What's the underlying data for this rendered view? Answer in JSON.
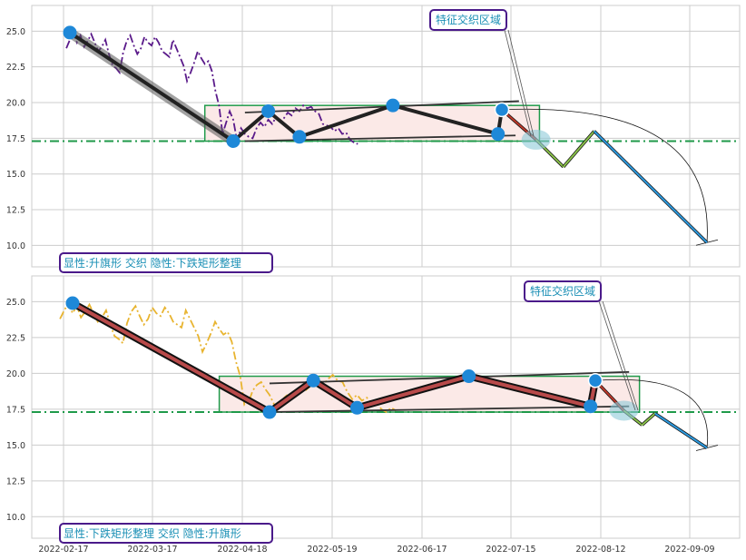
{
  "chart_data": [
    {
      "type": "line",
      "panel": "top",
      "yticks": [
        "10.0",
        "12.5",
        "15.0",
        "17.5",
        "20.0",
        "22.5",
        "25.0"
      ],
      "ylim": [
        8.5,
        26.8
      ],
      "grid": true,
      "hline": 17.3,
      "price": [
        [
          2,
          23.8
        ],
        [
          3,
          24.4
        ],
        [
          4,
          24.9
        ],
        [
          5,
          24.2
        ],
        [
          6,
          24.7
        ],
        [
          7,
          23.9
        ],
        [
          8,
          24.3
        ],
        [
          9,
          24.8
        ],
        [
          10,
          24.2
        ],
        [
          11,
          23.6
        ],
        [
          12,
          23.9
        ],
        [
          13,
          24.4
        ],
        [
          14,
          23.4
        ],
        [
          15,
          22.6
        ],
        [
          16,
          22.4
        ],
        [
          17,
          22.1
        ],
        [
          18,
          23.5
        ],
        [
          19,
          24.3
        ],
        [
          20,
          24.7
        ],
        [
          21,
          24.0
        ],
        [
          22,
          23.4
        ],
        [
          23,
          23.8
        ],
        [
          24,
          24.6
        ],
        [
          25,
          24.2
        ],
        [
          26,
          24.0
        ],
        [
          27,
          24.6
        ],
        [
          28,
          24.2
        ],
        [
          29,
          23.6
        ],
        [
          30,
          23.4
        ],
        [
          31,
          23.2
        ],
        [
          32,
          24.4
        ],
        [
          33,
          23.8
        ],
        [
          34,
          23.2
        ],
        [
          35,
          22.6
        ],
        [
          36,
          21.5
        ],
        [
          37,
          22.1
        ],
        [
          38,
          22.8
        ],
        [
          39,
          23.6
        ],
        [
          40,
          23.1
        ],
        [
          41,
          22.7
        ],
        [
          42,
          22.9
        ],
        [
          43,
          22.2
        ],
        [
          44,
          20.8
        ],
        [
          45,
          19.8
        ],
        [
          46,
          17.8
        ],
        [
          47,
          18.6
        ],
        [
          48,
          19.4
        ],
        [
          49,
          18.8
        ],
        [
          50,
          17.3
        ],
        [
          51,
          18.2
        ],
        [
          52,
          17.8
        ],
        [
          53,
          17.6
        ],
        [
          54,
          17.5
        ],
        [
          55,
          18.2
        ],
        [
          56,
          18.6
        ],
        [
          57,
          18.3
        ],
        [
          58,
          18.8
        ],
        [
          59,
          18.5
        ],
        [
          60,
          19.0
        ],
        [
          61,
          18.7
        ],
        [
          62,
          18.9
        ],
        [
          63,
          19.3
        ],
        [
          64,
          19.1
        ],
        [
          65,
          19.6
        ],
        [
          66,
          19.4
        ],
        [
          67,
          19.8
        ],
        [
          68,
          19.6
        ],
        [
          69,
          19.7
        ],
        [
          70,
          19.4
        ],
        [
          71,
          19.2
        ],
        [
          72,
          18.5
        ],
        [
          73,
          18.4
        ],
        [
          74,
          18.3
        ],
        [
          75,
          18.0
        ],
        [
          76,
          18.2
        ],
        [
          77,
          17.8
        ],
        [
          78,
          17.9
        ],
        [
          79,
          17.4
        ],
        [
          80,
          17.2
        ],
        [
          81,
          17.1
        ]
      ],
      "pattern_path": [
        [
          3,
          24.9
        ],
        [
          49,
          17.3
        ],
        [
          58,
          19.4
        ],
        [
          66,
          17.6
        ],
        [
          90,
          19.8
        ],
        [
          117,
          17.8
        ],
        [
          118,
          19.5
        ]
      ],
      "channel_top": [
        [
          52,
          19.3
        ],
        [
          123,
          20.1
        ]
      ],
      "channel_bottom": [
        [
          52,
          17.3
        ],
        [
          122,
          17.7
        ]
      ],
      "rect": {
        "x1": 41,
        "x2": 129,
        "y1": 17.3,
        "y2": 19.8
      },
      "marker_points": [
        [
          3,
          24.9
        ],
        [
          49,
          17.3
        ],
        [
          58,
          19.4
        ],
        [
          66,
          17.6
        ],
        [
          90,
          19.8
        ],
        [
          117,
          17.8
        ],
        [
          118,
          19.5
        ]
      ],
      "forecast": [
        [
          118,
          19.5
        ],
        [
          128,
          17.4
        ],
        [
          136,
          15.5
        ],
        [
          145,
          18.0
        ],
        [
          178,
          10.2
        ]
      ],
      "forecast_arc_center": [
        128,
        17.4
      ],
      "annotation": "特征交织区域",
      "label": "显性:升旗形 交织 隐性:下跌矩形整理"
    },
    {
      "type": "line",
      "panel": "bottom",
      "yticks": [
        "10.0",
        "12.5",
        "15.0",
        "17.5",
        "20.0",
        "22.5",
        "25.0"
      ],
      "ylim": [
        8.5,
        26.8
      ],
      "grid": true,
      "hline": 17.3,
      "price": [
        [
          0,
          23.8
        ],
        [
          1,
          24.4
        ],
        [
          2,
          24.9
        ],
        [
          3,
          24.2
        ],
        [
          4,
          24.7
        ],
        [
          5,
          23.9
        ],
        [
          6,
          24.3
        ],
        [
          7,
          24.8
        ],
        [
          8,
          24.2
        ],
        [
          9,
          23.6
        ],
        [
          10,
          23.9
        ],
        [
          11,
          24.4
        ],
        [
          12,
          23.4
        ],
        [
          13,
          22.6
        ],
        [
          14,
          22.4
        ],
        [
          15,
          22.1
        ],
        [
          16,
          23.5
        ],
        [
          17,
          24.3
        ],
        [
          18,
          24.7
        ],
        [
          19,
          24.0
        ],
        [
          20,
          23.4
        ],
        [
          21,
          23.8
        ],
        [
          22,
          24.6
        ],
        [
          23,
          24.2
        ],
        [
          24,
          24.0
        ],
        [
          25,
          24.6
        ],
        [
          26,
          24.2
        ],
        [
          27,
          23.6
        ],
        [
          28,
          23.4
        ],
        [
          29,
          23.2
        ],
        [
          30,
          24.4
        ],
        [
          31,
          23.8
        ],
        [
          32,
          23.2
        ],
        [
          33,
          22.6
        ],
        [
          34,
          21.5
        ],
        [
          35,
          22.1
        ],
        [
          36,
          22.8
        ],
        [
          37,
          23.6
        ],
        [
          38,
          23.1
        ],
        [
          39,
          22.7
        ],
        [
          40,
          22.9
        ],
        [
          41,
          22.2
        ],
        [
          42,
          20.8
        ],
        [
          43,
          19.8
        ],
        [
          44,
          17.8
        ],
        [
          45,
          18.0
        ],
        [
          46,
          18.8
        ],
        [
          47,
          19.2
        ],
        [
          48,
          19.4
        ],
        [
          49,
          18.9
        ],
        [
          50,
          18.5
        ],
        [
          51,
          17.8
        ],
        [
          52,
          17.6
        ],
        [
          53,
          18.3
        ],
        [
          54,
          18.6
        ],
        [
          55,
          18.5
        ],
        [
          56,
          18.9
        ],
        [
          57,
          18.7
        ],
        [
          58,
          19.0
        ],
        [
          59,
          19.3
        ],
        [
          60,
          19.5
        ],
        [
          61,
          19.2
        ],
        [
          62,
          19.6
        ],
        [
          63,
          19.9
        ],
        [
          64,
          19.5
        ],
        [
          65,
          19.4
        ],
        [
          66,
          18.7
        ],
        [
          67,
          18.2
        ],
        [
          68,
          18.5
        ],
        [
          69,
          18.1
        ],
        [
          70,
          18.3
        ],
        [
          71,
          17.9
        ],
        [
          72,
          18.0
        ],
        [
          73,
          17.5
        ],
        [
          74,
          17.3
        ],
        [
          75,
          17.6
        ],
        [
          76,
          17.4
        ]
      ],
      "pattern_path": [
        [
          3,
          24.9
        ],
        [
          50,
          17.3
        ],
        [
          59,
          19.5
        ],
        [
          68,
          17.6
        ],
        [
          91,
          19.8
        ],
        [
          116,
          17.7
        ],
        [
          117,
          19.5
        ]
      ],
      "channel_top": [
        [
          50,
          19.3
        ],
        [
          130,
          20.1
        ]
      ],
      "channel_bottom": [
        [
          50,
          17.3
        ],
        [
          130,
          17.7
        ]
      ],
      "rect": {
        "x1": 38,
        "x2": 134,
        "y1": 17.3,
        "y2": 19.8
      },
      "marker_points": [
        [
          3,
          24.9
        ],
        [
          50,
          17.3
        ],
        [
          59,
          19.5
        ],
        [
          68,
          17.6
        ],
        [
          91,
          19.8
        ],
        [
          116,
          17.7
        ],
        [
          117,
          19.5
        ]
      ],
      "forecast": [
        [
          117,
          19.5
        ],
        [
          128,
          17.4
        ],
        [
          135,
          16.4
        ],
        [
          140,
          17.2
        ],
        [
          160,
          14.8
        ]
      ],
      "forecast_arc_center": [
        128,
        17.4
      ],
      "annotation": "特征交织区域",
      "label": "显性:下跌矩形整理 交织 隐性:升旗形"
    }
  ],
  "xticks": [
    "2022-02-17",
    "2022-03-17",
    "2022-04-18",
    "2022-05-19",
    "2022-06-17",
    "2022-07-15",
    "2022-08-12",
    "2022-09-09"
  ],
  "colors": {
    "grid": "#cccccc",
    "hline": "#1f9a4a",
    "rect_edge": "#1f9a4a",
    "rect_fill": "#fbe9e7",
    "marker": "#1e88d8",
    "label_border": "#4a1a8a",
    "label_text": "#1a8fb5",
    "top_price": "#5a1a8a",
    "bottom_price": "#e8b430",
    "top_pattern": "#222222",
    "bottom_pattern_outer": "#111111",
    "bottom_pattern_inner": "#b84a4a"
  }
}
